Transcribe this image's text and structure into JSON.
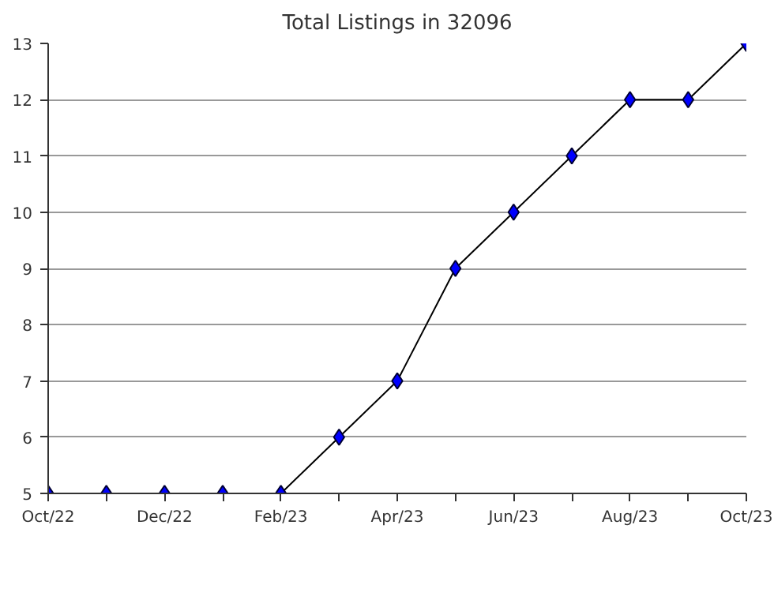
{
  "chart_data": {
    "type": "line",
    "title": "Total Listings in 32096",
    "categories": [
      "Oct/22",
      null,
      "Dec/22",
      null,
      "Feb/23",
      null,
      "Apr/23",
      null,
      "Jun/23",
      null,
      "Aug/23",
      null,
      "Oct/23"
    ],
    "series": [
      {
        "color": "#0000ff",
        "values": [
          5,
          5,
          5,
          5,
          5,
          6,
          7,
          9,
          10,
          11,
          12,
          12,
          13
        ]
      }
    ],
    "ylim": [
      5,
      13
    ],
    "yticks": [
      5,
      6,
      7,
      8,
      9,
      10,
      11,
      12,
      13
    ],
    "grid": "y",
    "marker": "diamond",
    "line_style": "solid"
  }
}
